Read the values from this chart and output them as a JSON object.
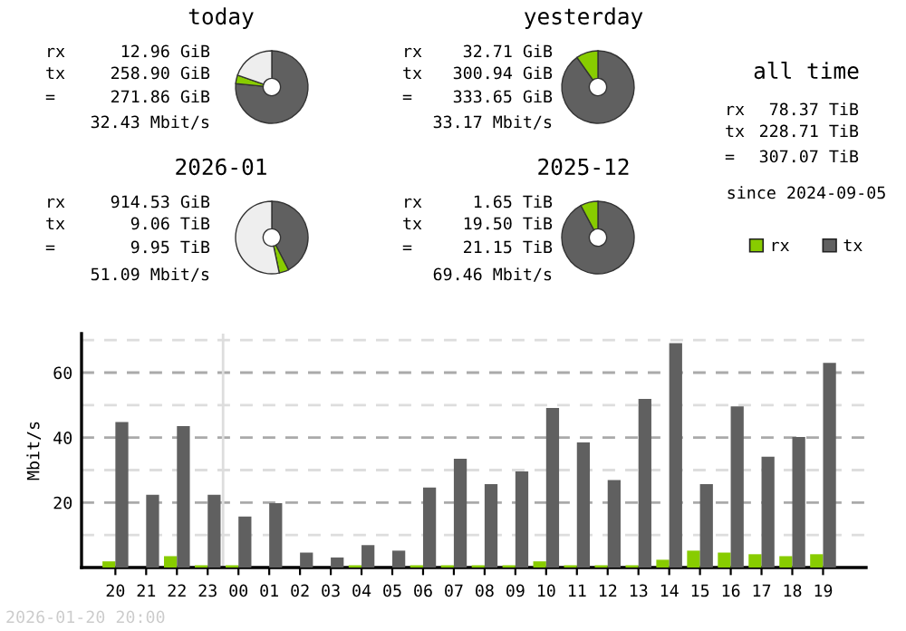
{
  "chart_data": [
    {
      "type": "donut",
      "title": "today",
      "categories": [
        null,
        null,
        null
      ],
      "values": [
        76.5,
        3.8,
        19.7
      ],
      "colors": [
        "#606060",
        "#88cc00",
        "#eeeeee"
      ],
      "annotations": [
        "rx 12.96 GiB",
        "tx 258.90 GiB",
        "= 271.86 GiB",
        "32.43 Mbit/s"
      ]
    },
    {
      "type": "donut",
      "title": "yesterday",
      "categories": [
        null,
        null
      ],
      "values": [
        90.2,
        9.8
      ],
      "colors": [
        "#606060",
        "#88cc00"
      ],
      "annotations": [
        "rx 32.71 GiB",
        "tx 300.94 GiB",
        "= 333.65 GiB",
        "33.17 Mbit/s"
      ]
    },
    {
      "type": "other",
      "title": "all time",
      "annotations": [
        "rx 78.37 TiB",
        "tx 228.71 TiB",
        "= 307.07 TiB",
        "since 2024-09-05"
      ]
    },
    {
      "type": "donut",
      "title": "2026-01",
      "categories": [
        null,
        null,
        null
      ],
      "values": [
        42.4,
        4.3,
        53.3
      ],
      "colors": [
        "#606060",
        "#88cc00",
        "#eeeeee"
      ],
      "annotations": [
        "rx 914.53 GiB",
        "tx 9.06 TiB",
        "= 9.95 TiB",
        "51.09 Mbit/s"
      ]
    },
    {
      "type": "donut",
      "title": "2025-12",
      "categories": [
        null,
        null
      ],
      "values": [
        92.2,
        7.8
      ],
      "colors": [
        "#606060",
        "#88cc00"
      ],
      "annotations": [
        "rx 1.65 TiB",
        "tx 19.50 TiB",
        "= 21.15 TiB",
        "69.46 Mbit/s"
      ]
    },
    {
      "type": "bar",
      "ylabel": "Mbit/s",
      "categories": [
        "20",
        "21",
        "22",
        "23",
        "00",
        "01",
        "02",
        "03",
        "04",
        "05",
        "06",
        "07",
        "08",
        "09",
        "10",
        "11",
        "12",
        "13",
        "14",
        "15",
        "16",
        "17",
        "18",
        "19"
      ],
      "series": [
        {
          "name": "rx",
          "color": "#88cc00",
          "values": [
            1.9,
            0,
            3.5,
            0.7,
            0.7,
            0,
            0,
            0,
            0.7,
            0,
            0.7,
            0.7,
            0.7,
            0.7,
            1.9,
            0.7,
            0.7,
            0.7,
            2.4,
            5.2,
            4.6,
            4.1,
            3.5,
            4.1
          ]
        },
        {
          "name": "tx",
          "color": "#606060",
          "values": [
            44.8,
            22.4,
            43.5,
            22.4,
            15.7,
            19.8,
            4.6,
            3.1,
            6.9,
            5.2,
            24.6,
            33.5,
            25.7,
            29.6,
            49.1,
            38.5,
            26.9,
            51.9,
            69.1,
            25.7,
            49.6,
            34.1,
            40.2,
            63.0
          ]
        }
      ],
      "ylim": [
        0,
        72
      ],
      "yticks": [
        {
          "value": 10,
          "label": null
        },
        20,
        {
          "value": 30,
          "label": null
        },
        40,
        {
          "value": 50,
          "label": null
        },
        60,
        {
          "value": 70,
          "label": null
        }
      ],
      "grid": "y",
      "legend": "top right",
      "ref_lines": [
        {
          "axis": "x",
          "value": "00",
          "color": "#dddddd"
        }
      ],
      "annotations": [
        "2026-01-20 20:00"
      ]
    }
  ]
}
